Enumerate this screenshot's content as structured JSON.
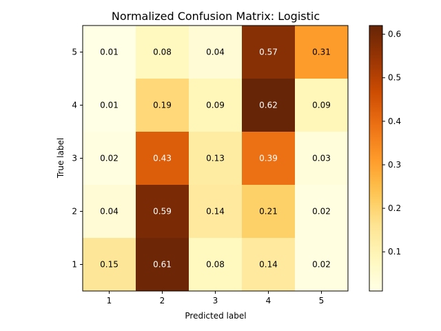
{
  "chart_data": {
    "type": "heatmap",
    "title": "Normalized Confusion Matrix: Logistic",
    "xlabel": "Predicted label",
    "ylabel": "True label",
    "x_categories": [
      "1",
      "2",
      "3",
      "4",
      "5"
    ],
    "y_categories": [
      "5",
      "4",
      "3",
      "2",
      "1"
    ],
    "values": [
      [
        0.01,
        0.08,
        0.04,
        0.57,
        0.31
      ],
      [
        0.01,
        0.19,
        0.09,
        0.62,
        0.09
      ],
      [
        0.02,
        0.43,
        0.13,
        0.39,
        0.03
      ],
      [
        0.04,
        0.59,
        0.14,
        0.21,
        0.02
      ],
      [
        0.15,
        0.61,
        0.08,
        0.14,
        0.02
      ]
    ],
    "colormap": "YlOrBr",
    "colorbar": {
      "min": 0.01,
      "max": 0.62,
      "ticks": [
        0.1,
        0.2,
        0.3,
        0.4,
        0.5,
        0.6
      ],
      "tick_labels": [
        "0.1",
        "0.2",
        "0.3",
        "0.4",
        "0.5",
        "0.6"
      ]
    }
  }
}
